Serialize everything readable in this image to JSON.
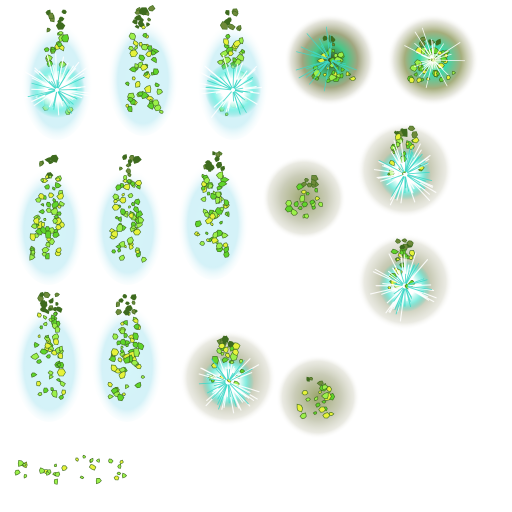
{
  "sheet": {
    "background": "#ffffff",
    "palette": {
      "aura": "#bfeaf2",
      "halo": "#b4b89a",
      "flame": "#5fd42a",
      "flame_light": "#9cf04a",
      "flame_dark": "#3e6b1e",
      "yellow": "#e6f23a",
      "core": "#ffffff",
      "cyan": "#3fd8c8"
    },
    "frames": [
      {
        "kind": "plume-burst"
      },
      {
        "kind": "plume"
      },
      {
        "kind": "plume-burst"
      },
      {
        "kind": "orb-dark"
      },
      {
        "kind": "orb-bright"
      },
      {
        "kind": "plume"
      },
      {
        "kind": "plume"
      },
      {
        "kind": "plume"
      },
      {
        "kind": "orb-fade"
      },
      {
        "kind": "orb-burst"
      },
      {
        "kind": "orb-burst"
      },
      {
        "kind": "plume"
      },
      {
        "kind": "plume"
      },
      {
        "kind": "orb-burst"
      },
      {
        "kind": "orb-fade"
      },
      {
        "kind": "embers"
      },
      {
        "kind": "embers"
      }
    ]
  }
}
